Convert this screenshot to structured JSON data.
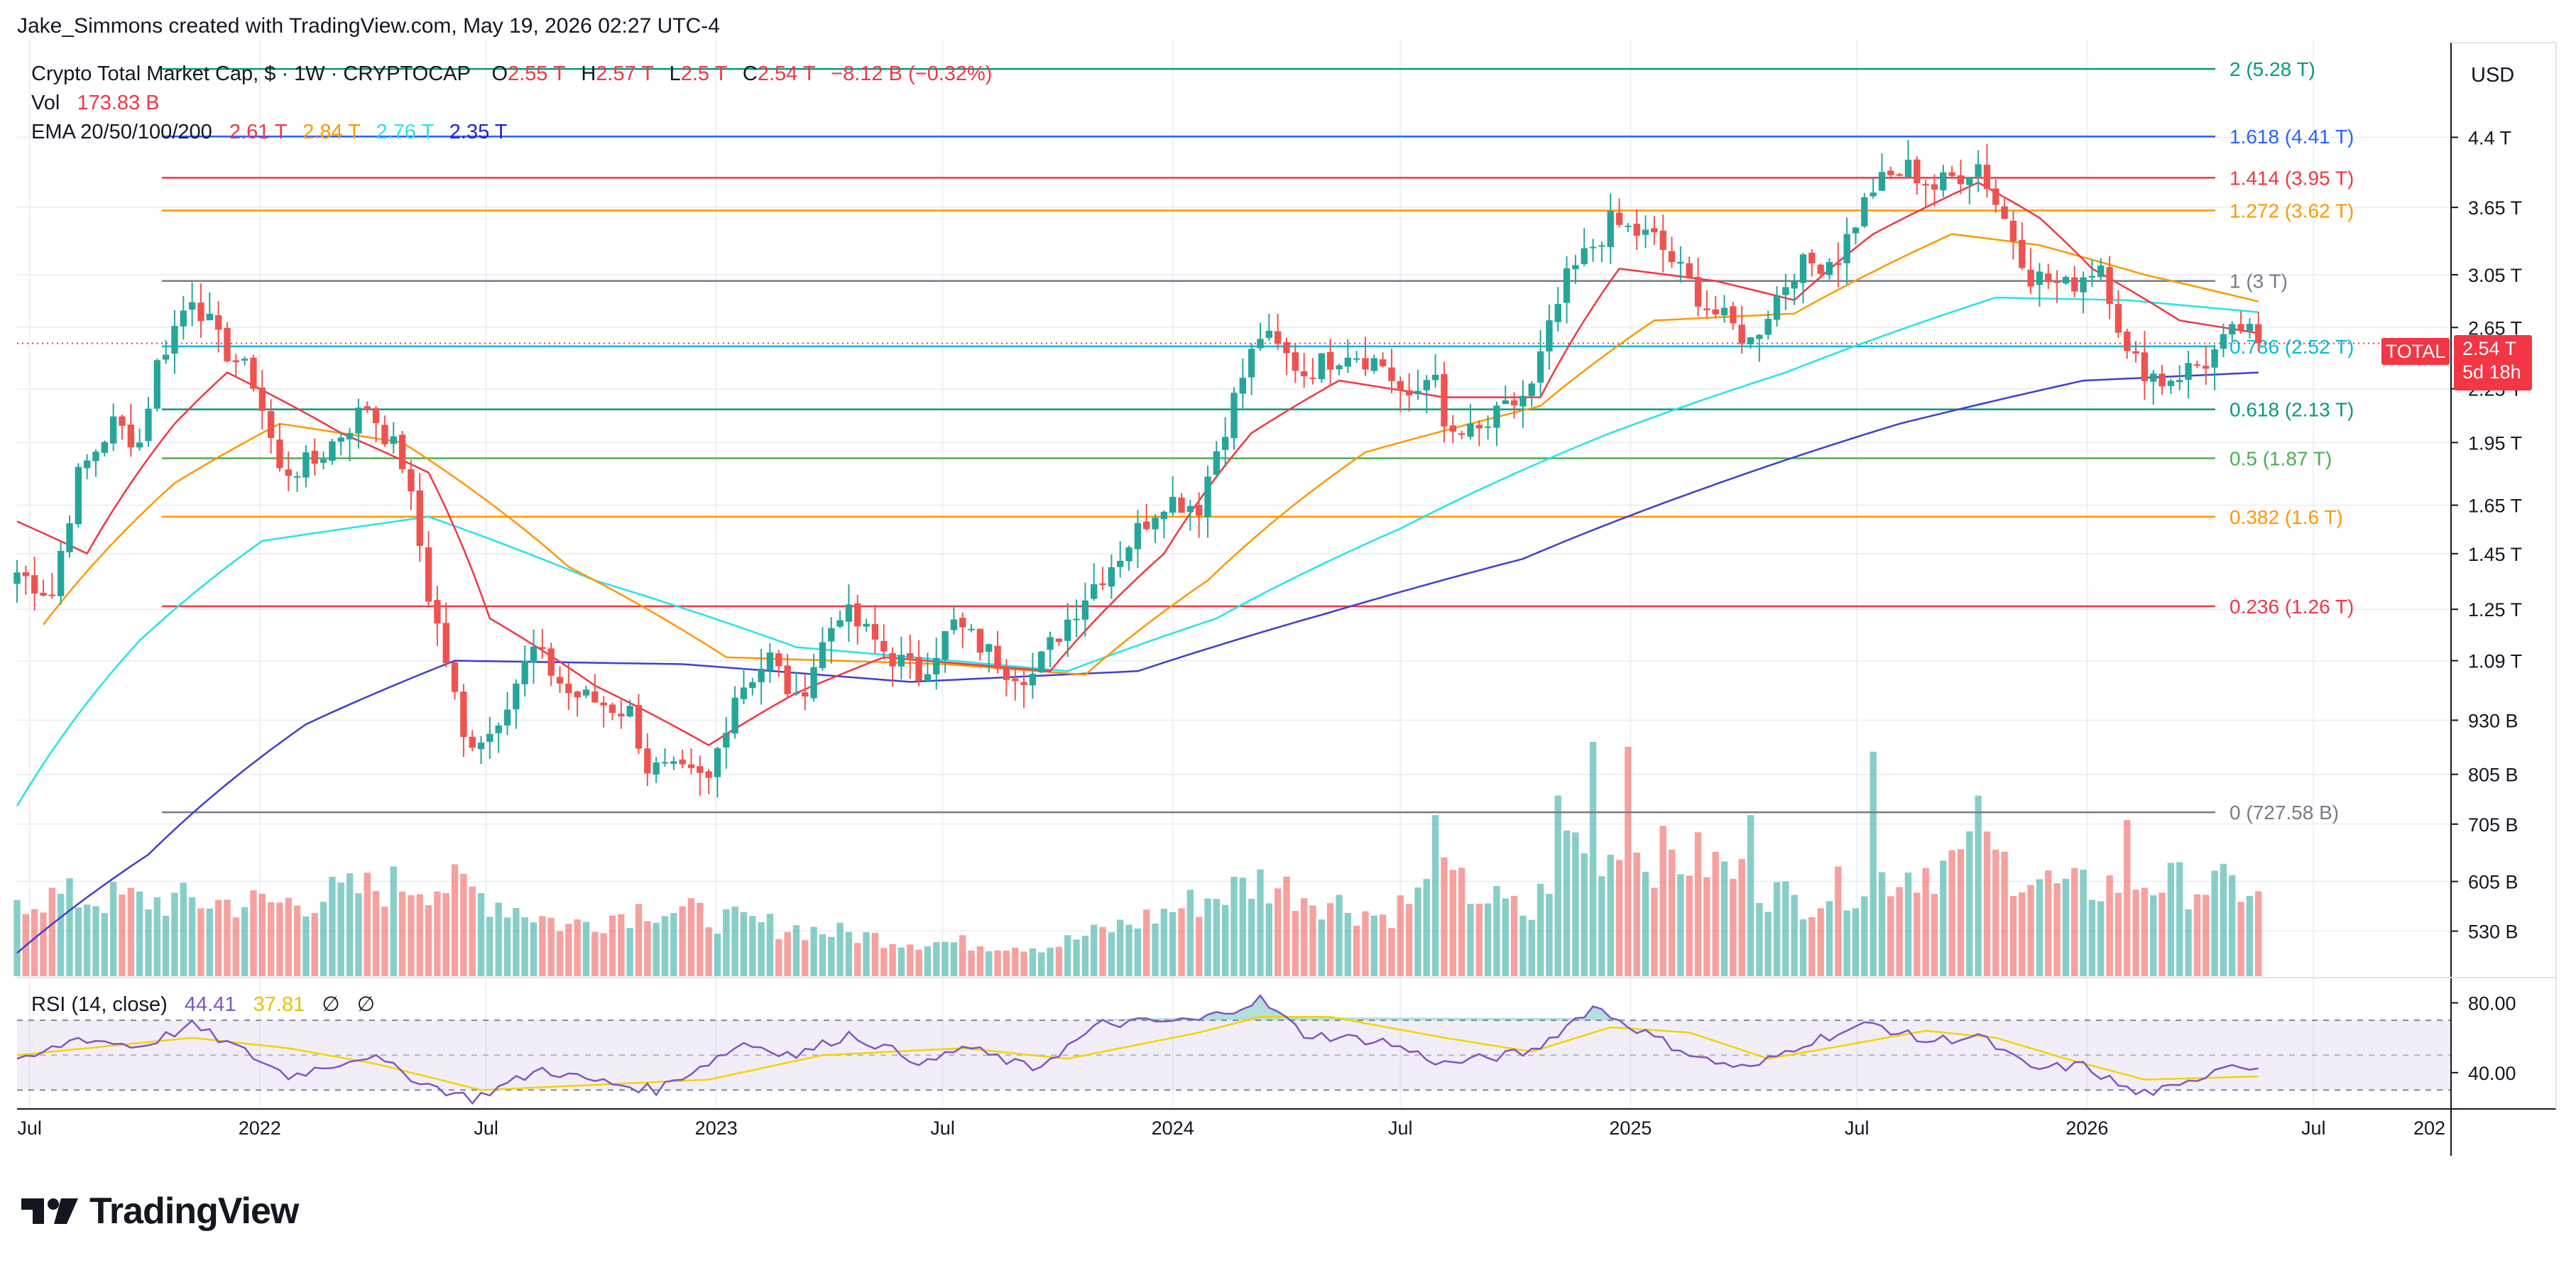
{
  "header": {
    "credit": "Jake_Simmons created with TradingView.com, May 19, 2026 02:27 UTC-4"
  },
  "legend": {
    "symbol": "Crypto Total Market Cap, $ · 1W · CRYPTOCAP",
    "o_label": "O",
    "o_value": "2.55 T",
    "h_label": "H",
    "h_value": "2.57 T",
    "l_label": "L",
    "l_value": "2.5 T",
    "c_label": "C",
    "c_value": "2.54 T",
    "change": "−8.12 B (−0.32%)",
    "vol_label": "Vol",
    "vol_value": "173.83 B",
    "ema_label": "EMA 20/50/100/200",
    "ema20": "2.61 T",
    "ema50": "2.84 T",
    "ema100": "2.76 T",
    "ema200": "2.35 T"
  },
  "rsi_legend": {
    "label": "RSI (14, close)",
    "rsi": "44.41",
    "ma": "37.81",
    "sym1": "∅",
    "sym2": "∅"
  },
  "currency": "USD",
  "price_badge": {
    "symbol": "TOTAL",
    "price": "2.54 T",
    "countdown": "5d 18h"
  },
  "logo": {
    "text": "TradingView"
  },
  "colors": {
    "up": "#26a69a",
    "down": "#ef5350",
    "ema20": "#f23645",
    "ema50": "#ff9800",
    "ema100": "#26e3e8",
    "ema200": "#3f3fcf",
    "rsi": "#7e57c2",
    "rsi_ma": "#f5d300",
    "badge": "#f23645"
  },
  "chart_data": {
    "type": "candlestick",
    "interval": "1W",
    "y_scale": "log",
    "x_range": [
      "2021-06-21",
      "2026-10-19"
    ],
    "y_range_T": [
      0.47,
      5.6
    ],
    "x_tick_labels": [
      {
        "label": "Jul",
        "date": "2021-07-01"
      },
      {
        "label": "2022",
        "date": "2022-01-01"
      },
      {
        "label": "Jul",
        "date": "2022-07-01"
      },
      {
        "label": "2023",
        "date": "2023-01-01"
      },
      {
        "label": "Jul",
        "date": "2023-07-01"
      },
      {
        "label": "2024",
        "date": "2024-01-01"
      },
      {
        "label": "Jul",
        "date": "2024-07-01"
      },
      {
        "label": "2025",
        "date": "2025-01-01"
      },
      {
        "label": "Jul",
        "date": "2025-07-01"
      },
      {
        "label": "2026",
        "date": "2026-01-01"
      },
      {
        "label": "Jul",
        "date": "2026-07-01"
      },
      {
        "label": "202",
        "date": "2027-01-01"
      }
    ],
    "y_tick_labels": [
      {
        "label": "4.4 T",
        "value": 4.4
      },
      {
        "label": "3.65 T",
        "value": 3.65
      },
      {
        "label": "3.05 T",
        "value": 3.05
      },
      {
        "label": "2.65 T",
        "value": 2.65
      },
      {
        "label": "2.25 T",
        "value": 2.25
      },
      {
        "label": "1.95 T",
        "value": 1.95
      },
      {
        "label": "1.65 T",
        "value": 1.65
      },
      {
        "label": "1.45 T",
        "value": 1.45
      },
      {
        "label": "1.25 T",
        "value": 1.25
      },
      {
        "label": "1.09 T",
        "value": 1.09
      },
      {
        "label": "930 B",
        "value": 0.93
      },
      {
        "label": "805 B",
        "value": 0.805
      },
      {
        "label": "705 B",
        "value": 0.705
      },
      {
        "label": "605 B",
        "value": 0.605
      },
      {
        "label": "530 B",
        "value": 0.53
      }
    ],
    "fib_levels": [
      {
        "label": "2 (5.28 T)",
        "value": 5.28,
        "color": "#089981"
      },
      {
        "label": "1.618 (4.41 T)",
        "value": 4.41,
        "color": "#2962ff"
      },
      {
        "label": "1.414 (3.95 T)",
        "value": 3.95,
        "color": "#f23645"
      },
      {
        "label": "1.272 (3.62 T)",
        "value": 3.62,
        "color": "#ff9800"
      },
      {
        "label": "1 (3 T)",
        "value": 3.0,
        "color": "#787b86"
      },
      {
        "label": "0.786 (2.52 T)",
        "value": 2.52,
        "color": "#00bcd4"
      },
      {
        "label": "0.618 (2.13 T)",
        "value": 2.13,
        "color": "#089981"
      },
      {
        "label": "0.5 (1.87 T)",
        "value": 1.87,
        "color": "#4caf50"
      },
      {
        "label": "0.382 (1.6 T)",
        "value": 1.6,
        "color": "#ff9800"
      },
      {
        "label": "0.236 (1.26 T)",
        "value": 1.26,
        "color": "#f23645"
      },
      {
        "label": "0 (727.58 B)",
        "value": 0.72758,
        "color": "#787b86"
      }
    ],
    "close_anchors_T": [
      [
        "2021-06-21",
        1.38
      ],
      [
        "2021-07-19",
        1.3
      ],
      [
        "2021-08-09",
        1.78
      ],
      [
        "2021-09-06",
        2.05
      ],
      [
        "2021-09-27",
        1.95
      ],
      [
        "2021-10-11",
        2.4
      ],
      [
        "2021-11-08",
        2.9
      ],
      [
        "2021-11-29",
        2.55
      ],
      [
        "2021-12-27",
        2.3
      ],
      [
        "2022-01-17",
        1.8
      ],
      [
        "2022-02-14",
        1.85
      ],
      [
        "2022-03-28",
        2.15
      ],
      [
        "2022-04-25",
        1.85
      ],
      [
        "2022-05-16",
        1.3
      ],
      [
        "2022-06-13",
        0.88
      ],
      [
        "2022-07-04",
        0.9
      ],
      [
        "2022-08-08",
        1.12
      ],
      [
        "2022-09-05",
        1.0
      ],
      [
        "2022-10-24",
        0.95
      ],
      [
        "2022-11-07",
        0.82
      ],
      [
        "2022-12-26",
        0.79
      ],
      [
        "2023-01-16",
        1.0
      ],
      [
        "2023-02-13",
        1.1
      ],
      [
        "2023-03-06",
        0.97
      ],
      [
        "2023-04-10",
        1.25
      ],
      [
        "2023-05-15",
        1.12
      ],
      [
        "2023-06-12",
        1.05
      ],
      [
        "2023-07-10",
        1.2
      ],
      [
        "2023-08-21",
        1.07
      ],
      [
        "2023-09-11",
        1.05
      ],
      [
        "2023-10-23",
        1.3
      ],
      [
        "2023-11-20",
        1.45
      ],
      [
        "2023-12-25",
        1.68
      ],
      [
        "2024-01-22",
        1.65
      ],
      [
        "2024-02-12",
        2.05
      ],
      [
        "2024-03-11",
        2.6
      ],
      [
        "2024-04-15",
        2.35
      ],
      [
        "2024-05-20",
        2.5
      ],
      [
        "2024-06-17",
        2.4
      ],
      [
        "2024-07-08",
        2.15
      ],
      [
        "2024-07-29",
        2.4
      ],
      [
        "2024-08-05",
        1.98
      ],
      [
        "2024-09-02",
        2.0
      ],
      [
        "2024-10-14",
        2.25
      ],
      [
        "2024-11-11",
        3.0
      ],
      [
        "2024-12-16",
        3.5
      ],
      [
        "2025-01-20",
        3.35
      ],
      [
        "2025-03-03",
        2.8
      ],
      [
        "2025-04-07",
        2.55
      ],
      [
        "2025-05-12",
        3.1
      ],
      [
        "2025-06-16",
        3.2
      ],
      [
        "2025-07-14",
        3.85
      ],
      [
        "2025-08-11",
        4.05
      ],
      [
        "2025-09-01",
        3.85
      ],
      [
        "2025-10-06",
        4.1
      ],
      [
        "2025-10-20",
        3.7
      ],
      [
        "2025-11-17",
        3.05
      ],
      [
        "2025-12-15",
        2.95
      ],
      [
        "2026-01-12",
        3.15
      ],
      [
        "2026-02-02",
        2.45
      ],
      [
        "2026-03-02",
        2.3
      ],
      [
        "2026-04-06",
        2.42
      ],
      [
        "2026-05-04",
        2.65
      ],
      [
        "2026-05-18",
        2.54
      ]
    ],
    "ema20_anchors_T": [
      [
        "2021-06-21",
        1.58
      ],
      [
        "2021-08-16",
        1.45
      ],
      [
        "2021-10-25",
        2.05
      ],
      [
        "2021-12-06",
        2.35
      ],
      [
        "2022-03-07",
        2.0
      ],
      [
        "2022-05-16",
        1.8
      ],
      [
        "2022-07-04",
        1.22
      ],
      [
        "2022-09-26",
        1.02
      ],
      [
        "2022-12-26",
        0.87
      ],
      [
        "2023-03-06",
        1.0
      ],
      [
        "2023-05-15",
        1.1
      ],
      [
        "2023-09-25",
        1.06
      ],
      [
        "2023-12-25",
        1.45
      ],
      [
        "2024-03-04",
        2.0
      ],
      [
        "2024-05-13",
        2.3
      ],
      [
        "2024-08-05",
        2.2
      ],
      [
        "2024-10-21",
        2.2
      ],
      [
        "2024-12-23",
        3.1
      ],
      [
        "2025-03-10",
        3.0
      ],
      [
        "2025-05-12",
        2.85
      ],
      [
        "2025-07-14",
        3.4
      ],
      [
        "2025-10-06",
        3.9
      ],
      [
        "2025-11-24",
        3.55
      ],
      [
        "2026-01-05",
        3.1
      ],
      [
        "2026-03-16",
        2.7
      ],
      [
        "2026-05-18",
        2.61
      ]
    ],
    "ema50_anchors_T": [
      [
        "2021-07-12",
        1.2
      ],
      [
        "2021-10-25",
        1.75
      ],
      [
        "2022-01-17",
        2.05
      ],
      [
        "2022-04-25",
        1.95
      ],
      [
        "2022-09-05",
        1.4
      ],
      [
        "2023-01-09",
        1.1
      ],
      [
        "2023-07-03",
        1.08
      ],
      [
        "2023-10-23",
        1.05
      ],
      [
        "2024-01-29",
        1.35
      ],
      [
        "2024-06-03",
        1.9
      ],
      [
        "2024-10-21",
        2.15
      ],
      [
        "2025-01-20",
        2.7
      ],
      [
        "2025-05-12",
        2.75
      ],
      [
        "2025-09-15",
        3.4
      ],
      [
        "2025-11-24",
        3.3
      ],
      [
        "2026-02-16",
        3.05
      ],
      [
        "2026-05-18",
        2.84
      ]
    ],
    "ema100_anchors_T": [
      [
        "2021-06-21",
        0.74
      ],
      [
        "2021-09-27",
        1.15
      ],
      [
        "2022-01-03",
        1.5
      ],
      [
        "2022-05-16",
        1.6
      ],
      [
        "2022-09-26",
        1.35
      ],
      [
        "2023-03-06",
        1.13
      ],
      [
        "2023-10-09",
        1.06
      ],
      [
        "2024-02-05",
        1.22
      ],
      [
        "2024-07-01",
        1.55
      ],
      [
        "2024-12-16",
        2.0
      ],
      [
        "2025-05-05",
        2.35
      ],
      [
        "2025-10-20",
        2.87
      ],
      [
        "2026-02-02",
        2.85
      ],
      [
        "2026-05-18",
        2.76
      ]
    ],
    "ema200_anchors_T": [
      [
        "2021-06-21",
        0.5
      ],
      [
        "2021-10-04",
        0.65
      ],
      [
        "2022-02-07",
        0.92
      ],
      [
        "2022-06-06",
        1.09
      ],
      [
        "2022-12-05",
        1.08
      ],
      [
        "2023-06-05",
        1.03
      ],
      [
        "2023-12-04",
        1.06
      ],
      [
        "2024-05-06",
        1.24
      ],
      [
        "2024-10-07",
        1.43
      ],
      [
        "2025-03-03",
        1.73
      ],
      [
        "2025-08-04",
        2.05
      ],
      [
        "2025-12-29",
        2.3
      ],
      [
        "2026-05-18",
        2.35
      ]
    ],
    "volume_anchors_B": [
      [
        "2021-06-21",
        160
      ],
      [
        "2021-10-25",
        150
      ],
      [
        "2022-01-17",
        145
      ],
      [
        "2022-05-09",
        190
      ],
      [
        "2022-06-13",
        175
      ],
      [
        "2022-09-05",
        100
      ],
      [
        "2022-11-07",
        140
      ],
      [
        "2023-01-16",
        110
      ],
      [
        "2023-06-05",
        70
      ],
      [
        "2023-09-25",
        60
      ],
      [
        "2023-12-04",
        110
      ],
      [
        "2024-03-11",
        190
      ],
      [
        "2024-06-17",
        120
      ],
      [
        "2024-08-05",
        190
      ],
      [
        "2024-10-14",
        120
      ],
      [
        "2024-11-11",
        280
      ],
      [
        "2024-12-16",
        250
      ],
      [
        "2025-03-03",
        230
      ],
      [
        "2025-05-12",
        150
      ],
      [
        "2025-08-11",
        210
      ],
      [
        "2025-10-13",
        240
      ],
      [
        "2025-12-15",
        170
      ],
      [
        "2026-02-02",
        190
      ],
      [
        "2026-05-18",
        174
      ]
    ],
    "volume_spikes_B": [
      [
        "2024-07-29",
        330
      ],
      [
        "2024-11-04",
        370
      ],
      [
        "2024-12-02",
        480
      ],
      [
        "2024-12-30",
        470
      ],
      [
        "2025-04-07",
        330
      ],
      [
        "2025-07-14",
        460
      ],
      [
        "2025-10-06",
        370
      ],
      [
        "2026-02-02",
        320
      ]
    ],
    "rsi_axis_labels": [
      {
        "label": "80.00",
        "value": 80
      },
      {
        "label": "40.00",
        "value": 40
      }
    ],
    "rsi_band": [
      30,
      70
    ],
    "rsi_anchors": [
      [
        "2021-06-21",
        45
      ],
      [
        "2021-08-09",
        60
      ],
      [
        "2021-09-27",
        55
      ],
      [
        "2021-11-08",
        67
      ],
      [
        "2021-12-20",
        52
      ],
      [
        "2022-01-24",
        38
      ],
      [
        "2022-03-28",
        50
      ],
      [
        "2022-05-16",
        33
      ],
      [
        "2022-06-20",
        25
      ],
      [
        "2022-08-15",
        42
      ],
      [
        "2022-09-19",
        36
      ],
      [
        "2022-11-14",
        30
      ],
      [
        "2023-01-23",
        57
      ],
      [
        "2023-03-06",
        50
      ],
      [
        "2023-04-17",
        62
      ],
      [
        "2023-06-19",
        45
      ],
      [
        "2023-07-17",
        55
      ],
      [
        "2023-09-11",
        42
      ],
      [
        "2023-11-06",
        68
      ],
      [
        "2024-01-22",
        70
      ],
      [
        "2024-03-11",
        82
      ],
      [
        "2024-04-15",
        62
      ],
      [
        "2024-06-17",
        58
      ],
      [
        "2024-08-05",
        45
      ],
      [
        "2024-10-14",
        52
      ],
      [
        "2024-12-02",
        78
      ],
      [
        "2025-01-20",
        60
      ],
      [
        "2025-03-03",
        47
      ],
      [
        "2025-04-07",
        42
      ],
      [
        "2025-05-19",
        57
      ],
      [
        "2025-07-14",
        68
      ],
      [
        "2025-08-25",
        58
      ],
      [
        "2025-10-06",
        61
      ],
      [
        "2025-11-17",
        42
      ],
      [
        "2025-12-29",
        44
      ],
      [
        "2026-02-09",
        28
      ],
      [
        "2026-03-16",
        31
      ],
      [
        "2026-04-20",
        45
      ],
      [
        "2026-05-18",
        44
      ]
    ],
    "rsi_ma_anchors": [
      [
        "2021-06-21",
        50
      ],
      [
        "2021-11-08",
        60
      ],
      [
        "2022-01-24",
        54
      ],
      [
        "2022-04-04",
        45
      ],
      [
        "2022-06-27",
        30
      ],
      [
        "2022-12-26",
        36
      ],
      [
        "2023-03-27",
        50
      ],
      [
        "2023-07-17",
        54
      ],
      [
        "2023-10-09",
        48
      ],
      [
        "2024-01-22",
        63
      ],
      [
        "2024-03-11",
        72
      ],
      [
        "2024-05-06",
        72
      ],
      [
        "2024-08-05",
        60
      ],
      [
        "2024-10-14",
        52
      ],
      [
        "2024-12-16",
        66
      ],
      [
        "2025-02-17",
        63
      ],
      [
        "2025-04-21",
        48
      ],
      [
        "2025-06-16",
        55
      ],
      [
        "2025-08-25",
        64
      ],
      [
        "2025-10-20",
        60
      ],
      [
        "2025-12-15",
        48
      ],
      [
        "2026-02-16",
        36
      ],
      [
        "2026-05-18",
        37.81
      ]
    ]
  }
}
